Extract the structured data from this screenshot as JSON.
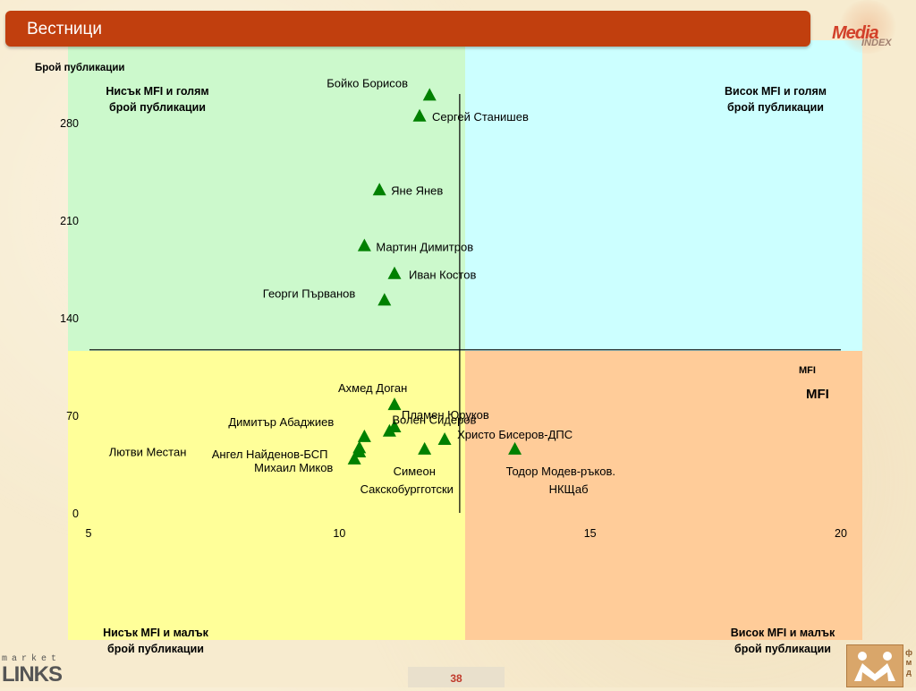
{
  "title": "Вестници",
  "page_number": "38",
  "logos": {
    "media": "Media",
    "media_sub": "INDEX",
    "links_top": "market",
    "links": "LINKS",
    "fmd": "ф\nм\nд"
  },
  "quadrant_labels": {
    "top_left": "Нисък MFI и голям\nброй публикации",
    "top_right": "Висок MFI и голям\nброй публикации",
    "bottom_left": "Нисък MFI и малък\nброй публикации",
    "bottom_right": "Висок MFI и малък\nброй публикации"
  },
  "colors": {
    "top_left": "#ccf9cc",
    "top_right": "#ccffff",
    "bottom_left": "#ffff99",
    "bottom_right": "#ffcc99",
    "marker": "#008000",
    "title_bar": "#c13f0e"
  },
  "chart_data": {
    "type": "scatter",
    "ylabel": "Брой публикации",
    "xlabel_small": "MFI",
    "xlabel_large": "MFI",
    "xlim": [
      5,
      20
    ],
    "ylim": [
      0,
      310
    ],
    "x_ticks": [
      "5",
      "10",
      "15",
      "20"
    ],
    "y_ticks": [
      "0",
      "70",
      "140",
      "210",
      "280"
    ],
    "divider_x": 12.4,
    "divider_y": 117,
    "points": [
      {
        "label": "Бойко Борисов",
        "x": 11.8,
        "y": 299
      },
      {
        "label": "Сергей Станишев",
        "x": 11.6,
        "y": 284
      },
      {
        "label": "Яне Янев",
        "x": 10.8,
        "y": 231
      },
      {
        "label": "Мартин Димитров",
        "x": 10.5,
        "y": 191
      },
      {
        "label": "Иван Костов",
        "x": 11.1,
        "y": 171
      },
      {
        "label": "Георги Първанов",
        "x": 10.9,
        "y": 152
      },
      {
        "label": "Ахмед Доган",
        "x": 11.1,
        "y": 77
      },
      {
        "label": "Пламен Юруков",
        "x": 11.1,
        "y": 61
      },
      {
        "label": "Волен Сидеров",
        "x": 11.0,
        "y": 58
      },
      {
        "label": "Димитър Абаджиев",
        "x": 10.5,
        "y": 54
      },
      {
        "label": "Христо Бисеров-ДПС",
        "x": 12.1,
        "y": 52
      },
      {
        "label": "Лютви Местан",
        "x": 10.4,
        "y": 46
      },
      {
        "label": "Ангел Найденов-БСП",
        "x": 10.4,
        "y": 43
      },
      {
        "label": "Симеон Сакскобургготски",
        "x": 11.7,
        "y": 45
      },
      {
        "label": "Михаил Миков",
        "x": 10.3,
        "y": 38
      },
      {
        "label": "Тодор Модев-ръков. НКЩаб",
        "x": 13.5,
        "y": 45
      }
    ]
  }
}
